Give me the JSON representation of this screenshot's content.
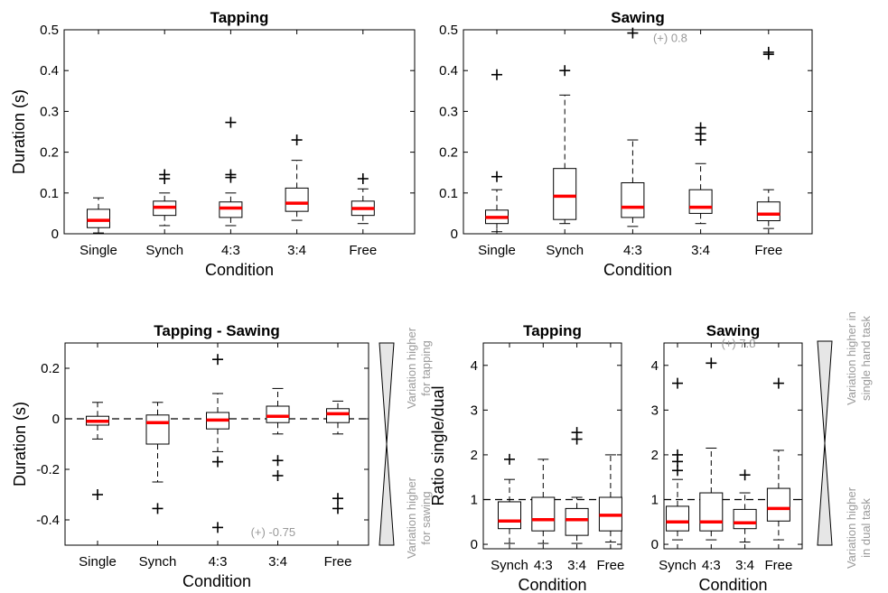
{
  "figure": {
    "side_labels": {
      "bottom_left_high": [
        "Variation higher",
        "for tapping"
      ],
      "bottom_left_low": [
        "Variation higher",
        "for sawing"
      ],
      "bottom_right_high": [
        "Variation higher in",
        "single hand task"
      ],
      "bottom_right_low": [
        "Variation higher",
        "in dual task"
      ]
    }
  },
  "chart_data": [
    {
      "id": "top-left",
      "type": "box",
      "title": "Tapping",
      "xlabel": "Condition",
      "ylabel": "Duration (s)",
      "categories": [
        "Single",
        "Synch",
        "4:3",
        "3:4",
        "Free"
      ],
      "ylim": [
        0,
        0.5
      ],
      "yticks": [
        0,
        0.1,
        0.2,
        0.3,
        0.4,
        0.5
      ],
      "ytick_labels": [
        "0",
        "0.1",
        "0.2",
        "0.3",
        "0.4",
        "0.5"
      ],
      "boxes": [
        {
          "whislo": 0.002,
          "q1": 0.015,
          "med": 0.033,
          "q3": 0.06,
          "whishi": 0.088,
          "fliers": []
        },
        {
          "whislo": 0.02,
          "q1": 0.045,
          "med": 0.065,
          "q3": 0.08,
          "whishi": 0.1,
          "fliers": [
            0.135,
            0.145
          ]
        },
        {
          "whislo": 0.02,
          "q1": 0.04,
          "med": 0.063,
          "q3": 0.078,
          "whishi": 0.1,
          "fliers": [
            0.138,
            0.145,
            0.273
          ]
        },
        {
          "whislo": 0.033,
          "q1": 0.055,
          "med": 0.075,
          "q3": 0.112,
          "whishi": 0.18,
          "fliers": [
            0.23
          ]
        },
        {
          "whislo": 0.025,
          "q1": 0.045,
          "med": 0.062,
          "q3": 0.08,
          "whishi": 0.11,
          "fliers": [
            0.135
          ]
        }
      ],
      "annotations": []
    },
    {
      "id": "top-right",
      "type": "box",
      "title": "Sawing",
      "xlabel": "Condition",
      "ylabel": "",
      "categories": [
        "Single",
        "Synch",
        "4:3",
        "3:4",
        "Free"
      ],
      "ylim": [
        0,
        0.5
      ],
      "yticks": [
        0,
        0.1,
        0.2,
        0.3,
        0.4,
        0.5
      ],
      "ytick_labels": [
        "0",
        "0.1",
        "0.2",
        "0.3",
        "0.4",
        "0.5"
      ],
      "boxes": [
        {
          "whislo": 0.005,
          "q1": 0.025,
          "med": 0.04,
          "q3": 0.058,
          "whishi": 0.108,
          "fliers": [
            0.14,
            0.39
          ]
        },
        {
          "whislo": 0.025,
          "q1": 0.035,
          "med": 0.092,
          "q3": 0.16,
          "whishi": 0.34,
          "fliers": [
            0.4
          ]
        },
        {
          "whislo": 0.018,
          "q1": 0.04,
          "med": 0.065,
          "q3": 0.125,
          "whishi": 0.23,
          "fliers": [
            0.492
          ]
        },
        {
          "whislo": 0.025,
          "q1": 0.05,
          "med": 0.065,
          "q3": 0.108,
          "whishi": 0.172,
          "fliers": [
            0.23,
            0.245,
            0.26
          ]
        },
        {
          "whislo": 0.013,
          "q1": 0.032,
          "med": 0.048,
          "q3": 0.078,
          "whishi": 0.108,
          "fliers": [
            0.44,
            0.445
          ]
        }
      ],
      "annotations": [
        {
          "text": "(+) 0.8",
          "x": 3.3,
          "y": 0.47
        }
      ]
    },
    {
      "id": "bottom-left",
      "type": "box",
      "title": "Tapping - Sawing",
      "xlabel": "Condition",
      "ylabel": "Duration (s)",
      "categories": [
        "Single",
        "Synch",
        "4:3",
        "3:4",
        "Free"
      ],
      "ylim": [
        -0.5,
        0.3
      ],
      "yticks": [
        -0.4,
        -0.2,
        0,
        0.2
      ],
      "ytick_labels": [
        "-0.4",
        "-0.2",
        "0",
        "0.2"
      ],
      "refline": 0,
      "boxes": [
        {
          "whislo": -0.08,
          "q1": -0.025,
          "med": -0.01,
          "q3": 0.01,
          "whishi": 0.065,
          "fliers": [
            -0.3
          ]
        },
        {
          "whislo": -0.25,
          "q1": -0.1,
          "med": -0.015,
          "q3": 0.015,
          "whishi": 0.065,
          "fliers": [
            -0.355
          ]
        },
        {
          "whislo": -0.13,
          "q1": -0.04,
          "med": -0.005,
          "q3": 0.025,
          "whishi": 0.1,
          "fliers": [
            -0.43,
            -0.17,
            0.235
          ]
        },
        {
          "whislo": -0.06,
          "q1": -0.015,
          "med": 0.01,
          "q3": 0.05,
          "whishi": 0.12,
          "fliers": [
            -0.225,
            -0.165
          ]
        },
        {
          "whislo": -0.06,
          "q1": -0.015,
          "med": 0.02,
          "q3": 0.04,
          "whishi": 0.07,
          "fliers": [
            -0.355,
            -0.315
          ]
        }
      ],
      "annotations": [
        {
          "text": "(+) -0.75",
          "x": 3.55,
          "y": -0.465
        }
      ]
    },
    {
      "id": "bottom-mid",
      "type": "box",
      "title": "Tapping",
      "xlabel": "Condition",
      "ylabel": "Ratio single/dual",
      "categories": [
        "Synch",
        "4:3",
        "3:4",
        "Free"
      ],
      "ylim": [
        -0.1,
        4.5
      ],
      "yticks": [
        0,
        1,
        2,
        3,
        4
      ],
      "ytick_labels": [
        "0",
        "1",
        "2",
        "3",
        "4"
      ],
      "refline": 1,
      "boxes": [
        {
          "whislo": 0.02,
          "q1": 0.35,
          "med": 0.52,
          "q3": 0.95,
          "whishi": 1.45,
          "fliers": [
            1.9
          ]
        },
        {
          "whislo": 0.02,
          "q1": 0.3,
          "med": 0.55,
          "q3": 1.05,
          "whishi": 1.9,
          "fliers": []
        },
        {
          "whislo": 0.02,
          "q1": 0.2,
          "med": 0.55,
          "q3": 0.8,
          "whishi": 1.05,
          "fliers": [
            2.35,
            2.5
          ]
        },
        {
          "whislo": 0.05,
          "q1": 0.3,
          "med": 0.65,
          "q3": 1.05,
          "whishi": 2.0,
          "fliers": []
        }
      ],
      "annotations": []
    },
    {
      "id": "bottom-right",
      "type": "box",
      "title": "Sawing",
      "xlabel": "Condition",
      "ylabel": "",
      "categories": [
        "Synch",
        "4:3",
        "3:4",
        "Free"
      ],
      "ylim": [
        -0.1,
        4.5
      ],
      "yticks": [
        0,
        1,
        2,
        3,
        4
      ],
      "ytick_labels": [
        "0",
        "1",
        "2",
        "3",
        "4"
      ],
      "refline": 1,
      "boxes": [
        {
          "whislo": 0.1,
          "q1": 0.3,
          "med": 0.5,
          "q3": 0.85,
          "whishi": 1.45,
          "fliers": [
            1.65,
            1.85,
            2.0,
            3.6
          ]
        },
        {
          "whislo": 0.1,
          "q1": 0.3,
          "med": 0.5,
          "q3": 1.15,
          "whishi": 2.15,
          "fliers": [
            4.05
          ]
        },
        {
          "whislo": 0.05,
          "q1": 0.35,
          "med": 0.48,
          "q3": 0.78,
          "whishi": 1.15,
          "fliers": [
            1.55
          ]
        },
        {
          "whislo": 0.1,
          "q1": 0.52,
          "med": 0.8,
          "q3": 1.25,
          "whishi": 2.1,
          "fliers": [
            3.6
          ]
        }
      ],
      "annotations": [
        {
          "text": "(+) 7.8",
          "x": 2.3,
          "y": 4.4
        }
      ]
    }
  ]
}
